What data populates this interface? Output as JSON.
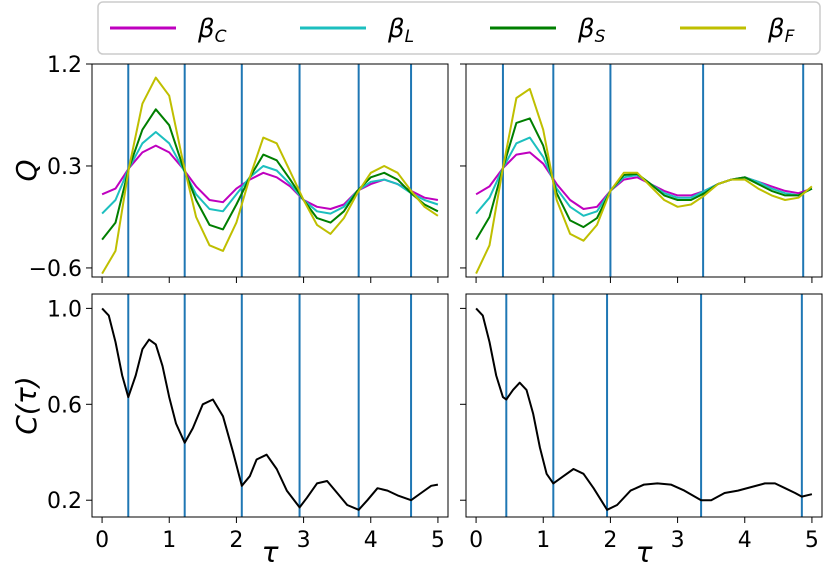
{
  "chart_data": {
    "type": "line",
    "legend": {
      "placement": "top",
      "entries": [
        {
          "name": "β",
          "sub": "C",
          "color": "#bf00bf"
        },
        {
          "name": "β",
          "sub": "L",
          "color": "#1cbfbf"
        },
        {
          "name": "β",
          "sub": "S",
          "color": "#007f00"
        },
        {
          "name": "β",
          "sub": "F",
          "color": "#bfbf00"
        }
      ]
    },
    "vline_color": "#1f77b4",
    "panels": [
      {
        "id": "top-left",
        "ylabel": "Q",
        "xlim": [
          -0.15,
          5.15
        ],
        "ylim": [
          -0.68,
          1.2
        ],
        "yticks": [
          {
            "v": -0.6,
            "label": "−0.6"
          },
          {
            "v": 0.3,
            "label": "0.3"
          },
          {
            "v": 1.2,
            "label": "1.2"
          }
        ],
        "xticks": [],
        "vlines": [
          0.39,
          1.23,
          2.08,
          2.94,
          3.82,
          4.6
        ],
        "series": [
          {
            "name": "βC",
            "color": "#bf00bf",
            "x": [
              0,
              0.2,
              0.4,
              0.6,
              0.8,
              1.0,
              1.2,
              1.4,
              1.6,
              1.8,
              2.0,
              2.2,
              2.4,
              2.6,
              2.8,
              3.0,
              3.2,
              3.4,
              3.6,
              3.8,
              4.0,
              4.2,
              4.4,
              4.6,
              4.8,
              5.0
            ],
            "y": [
              0.05,
              0.1,
              0.28,
              0.42,
              0.48,
              0.42,
              0.28,
              0.12,
              0.0,
              -0.02,
              0.1,
              0.18,
              0.24,
              0.2,
              0.12,
              0.0,
              -0.06,
              -0.08,
              -0.04,
              0.08,
              0.14,
              0.18,
              0.14,
              0.08,
              0.02,
              0.0
            ]
          },
          {
            "name": "βL",
            "color": "#1cbfbf",
            "x": [
              0,
              0.2,
              0.4,
              0.6,
              0.8,
              1.0,
              1.2,
              1.4,
              1.6,
              1.8,
              2.0,
              2.2,
              2.4,
              2.6,
              2.8,
              3.0,
              3.2,
              3.4,
              3.6,
              3.8,
              4.0,
              4.2,
              4.4,
              4.6,
              4.8,
              5.0
            ],
            "y": [
              -0.12,
              0.0,
              0.28,
              0.5,
              0.6,
              0.5,
              0.28,
              0.05,
              -0.08,
              -0.1,
              0.05,
              0.2,
              0.3,
              0.26,
              0.14,
              0.0,
              -0.1,
              -0.12,
              -0.06,
              0.08,
              0.16,
              0.18,
              0.14,
              0.06,
              0.0,
              -0.04
            ]
          },
          {
            "name": "βS",
            "color": "#007f00",
            "x": [
              0,
              0.2,
              0.4,
              0.6,
              0.8,
              1.0,
              1.2,
              1.4,
              1.6,
              1.8,
              2.0,
              2.2,
              2.4,
              2.6,
              2.8,
              3.0,
              3.2,
              3.4,
              3.6,
              3.8,
              4.0,
              4.2,
              4.4,
              4.6,
              4.8,
              5.0
            ],
            "y": [
              -0.35,
              -0.2,
              0.28,
              0.62,
              0.8,
              0.66,
              0.3,
              0.0,
              -0.22,
              -0.26,
              -0.04,
              0.2,
              0.4,
              0.35,
              0.18,
              0.0,
              -0.16,
              -0.2,
              -0.1,
              0.08,
              0.2,
              0.24,
              0.18,
              0.06,
              -0.04,
              -0.1
            ]
          },
          {
            "name": "βF",
            "color": "#bfbf00",
            "x": [
              0,
              0.2,
              0.4,
              0.6,
              0.8,
              1.0,
              1.2,
              1.4,
              1.6,
              1.8,
              2.0,
              2.2,
              2.4,
              2.6,
              2.8,
              3.0,
              3.2,
              3.4,
              3.6,
              3.8,
              4.0,
              4.2,
              4.4,
              4.6,
              4.8,
              5.0
            ],
            "y": [
              -0.65,
              -0.45,
              0.28,
              0.85,
              1.08,
              0.92,
              0.35,
              -0.15,
              -0.4,
              -0.45,
              -0.2,
              0.2,
              0.55,
              0.5,
              0.25,
              0.0,
              -0.22,
              -0.3,
              -0.16,
              0.06,
              0.24,
              0.3,
              0.24,
              0.08,
              -0.06,
              -0.14
            ]
          }
        ]
      },
      {
        "id": "top-right",
        "ylabel": "",
        "xlim": [
          -0.15,
          5.15
        ],
        "ylim": [
          -0.68,
          1.2
        ],
        "yticks": [
          {
            "v": -0.6,
            "label": ""
          },
          {
            "v": 0.3,
            "label": ""
          },
          {
            "v": 1.2,
            "label": ""
          }
        ],
        "xticks": [],
        "vlines": [
          0.4,
          1.15,
          2.0,
          3.38,
          4.87
        ],
        "series": [
          {
            "name": "βC",
            "color": "#bf00bf",
            "x": [
              0,
              0.2,
              0.4,
              0.6,
              0.8,
              1.0,
              1.2,
              1.4,
              1.6,
              1.8,
              2.0,
              2.2,
              2.4,
              2.6,
              2.8,
              3.0,
              3.2,
              3.4,
              3.6,
              3.8,
              4.0,
              4.2,
              4.4,
              4.6,
              4.8,
              5.0
            ],
            "y": [
              0.05,
              0.12,
              0.28,
              0.4,
              0.42,
              0.32,
              0.14,
              0.0,
              -0.08,
              -0.06,
              0.08,
              0.18,
              0.2,
              0.14,
              0.08,
              0.04,
              0.04,
              0.08,
              0.14,
              0.18,
              0.2,
              0.16,
              0.12,
              0.08,
              0.06,
              0.1
            ]
          },
          {
            "name": "βL",
            "color": "#1cbfbf",
            "x": [
              0,
              0.2,
              0.4,
              0.6,
              0.8,
              1.0,
              1.2,
              1.4,
              1.6,
              1.8,
              2.0,
              2.2,
              2.4,
              2.6,
              2.8,
              3.0,
              3.2,
              3.4,
              3.6,
              3.8,
              4.0,
              4.2,
              4.4,
              4.6,
              4.8,
              5.0
            ],
            "y": [
              -0.12,
              0.02,
              0.28,
              0.5,
              0.55,
              0.38,
              0.1,
              -0.06,
              -0.14,
              -0.1,
              0.08,
              0.2,
              0.22,
              0.14,
              0.06,
              0.02,
              0.02,
              0.08,
              0.14,
              0.18,
              0.2,
              0.16,
              0.1,
              0.06,
              0.04,
              0.1
            ]
          },
          {
            "name": "βS",
            "color": "#007f00",
            "x": [
              0,
              0.2,
              0.4,
              0.6,
              0.8,
              1.0,
              1.2,
              1.4,
              1.6,
              1.8,
              2.0,
              2.2,
              2.4,
              2.6,
              2.8,
              3.0,
              3.2,
              3.4,
              3.6,
              3.8,
              4.0,
              4.2,
              4.4,
              4.6,
              4.8,
              5.0
            ],
            "y": [
              -0.35,
              -0.15,
              0.28,
              0.68,
              0.72,
              0.48,
              0.06,
              -0.18,
              -0.24,
              -0.16,
              0.08,
              0.22,
              0.23,
              0.14,
              0.04,
              0.0,
              0.0,
              0.06,
              0.14,
              0.18,
              0.2,
              0.14,
              0.08,
              0.04,
              0.04,
              0.1
            ]
          },
          {
            "name": "βF",
            "color": "#bfbf00",
            "x": [
              0,
              0.2,
              0.4,
              0.6,
              0.8,
              1.0,
              1.2,
              1.4,
              1.6,
              1.8,
              2.0,
              2.2,
              2.4,
              2.6,
              2.8,
              3.0,
              3.2,
              3.4,
              3.6,
              3.8,
              4.0,
              4.2,
              4.4,
              4.6,
              4.8,
              5.0
            ],
            "y": [
              -0.65,
              -0.4,
              0.28,
              0.9,
              0.98,
              0.62,
              0.0,
              -0.3,
              -0.36,
              -0.22,
              0.08,
              0.24,
              0.24,
              0.12,
              0.0,
              -0.06,
              -0.04,
              0.04,
              0.14,
              0.18,
              0.18,
              0.1,
              0.04,
              0.0,
              0.02,
              0.12
            ]
          }
        ]
      },
      {
        "id": "bottom-left",
        "ylabel": "C(τ)",
        "xlim": [
          -0.15,
          5.15
        ],
        "ylim": [
          0.13,
          1.06
        ],
        "yticks": [
          {
            "v": 0.2,
            "label": "0.2"
          },
          {
            "v": 0.6,
            "label": "0.6"
          },
          {
            "v": 1.0,
            "label": "1.0"
          }
        ],
        "xlabel": "τ",
        "xticks": [
          {
            "v": 0,
            "label": "0"
          },
          {
            "v": 1,
            "label": "1"
          },
          {
            "v": 2,
            "label": "2"
          },
          {
            "v": 3,
            "label": "3"
          },
          {
            "v": 4,
            "label": "4"
          },
          {
            "v": 5,
            "label": "5"
          }
        ],
        "vlines": [
          0.39,
          1.23,
          2.08,
          2.94,
          3.82,
          4.6
        ],
        "series": [
          {
            "name": "C",
            "color": "#000000",
            "x": [
              0,
              0.1,
              0.2,
              0.3,
              0.39,
              0.5,
              0.6,
              0.7,
              0.8,
              0.9,
              1.0,
              1.1,
              1.23,
              1.35,
              1.5,
              1.65,
              1.8,
              1.95,
              2.08,
              2.2,
              2.3,
              2.45,
              2.6,
              2.75,
              2.94,
              3.05,
              3.2,
              3.35,
              3.5,
              3.65,
              3.82,
              3.95,
              4.1,
              4.25,
              4.4,
              4.6,
              4.75,
              4.9,
              5.0
            ],
            "y": [
              1.0,
              0.97,
              0.86,
              0.72,
              0.63,
              0.72,
              0.83,
              0.87,
              0.85,
              0.76,
              0.63,
              0.52,
              0.44,
              0.5,
              0.6,
              0.62,
              0.55,
              0.4,
              0.26,
              0.3,
              0.37,
              0.39,
              0.33,
              0.24,
              0.17,
              0.21,
              0.27,
              0.28,
              0.23,
              0.18,
              0.16,
              0.2,
              0.25,
              0.24,
              0.22,
              0.2,
              0.23,
              0.26,
              0.265
            ]
          }
        ]
      },
      {
        "id": "bottom-right",
        "ylabel": "",
        "xlim": [
          -0.15,
          5.15
        ],
        "ylim": [
          0.13,
          1.06
        ],
        "yticks": [
          {
            "v": 0.2,
            "label": ""
          },
          {
            "v": 0.6,
            "label": ""
          },
          {
            "v": 1.0,
            "label": ""
          }
        ],
        "xlabel": "τ",
        "xticks": [
          {
            "v": 0,
            "label": "0"
          },
          {
            "v": 1,
            "label": "1"
          },
          {
            "v": 2,
            "label": "2"
          },
          {
            "v": 3,
            "label": "3"
          },
          {
            "v": 4,
            "label": "4"
          },
          {
            "v": 5,
            "label": "5"
          }
        ],
        "vlines": [
          0.45,
          1.15,
          1.95,
          3.35,
          4.85
        ],
        "series": [
          {
            "name": "C",
            "color": "#000000",
            "x": [
              0,
              0.1,
              0.2,
              0.3,
              0.4,
              0.45,
              0.55,
              0.65,
              0.75,
              0.85,
              0.95,
              1.05,
              1.15,
              1.3,
              1.45,
              1.6,
              1.75,
              1.95,
              2.1,
              2.3,
              2.5,
              2.7,
              2.9,
              3.1,
              3.35,
              3.5,
              3.7,
              3.9,
              4.1,
              4.3,
              4.45,
              4.6,
              4.75,
              4.85,
              5.0
            ],
            "y": [
              1.0,
              0.97,
              0.86,
              0.72,
              0.63,
              0.62,
              0.66,
              0.69,
              0.66,
              0.56,
              0.42,
              0.31,
              0.27,
              0.3,
              0.33,
              0.31,
              0.25,
              0.16,
              0.18,
              0.24,
              0.265,
              0.27,
              0.265,
              0.24,
              0.2,
              0.2,
              0.23,
              0.24,
              0.255,
              0.27,
              0.27,
              0.25,
              0.23,
              0.215,
              0.225
            ]
          }
        ]
      }
    ]
  }
}
